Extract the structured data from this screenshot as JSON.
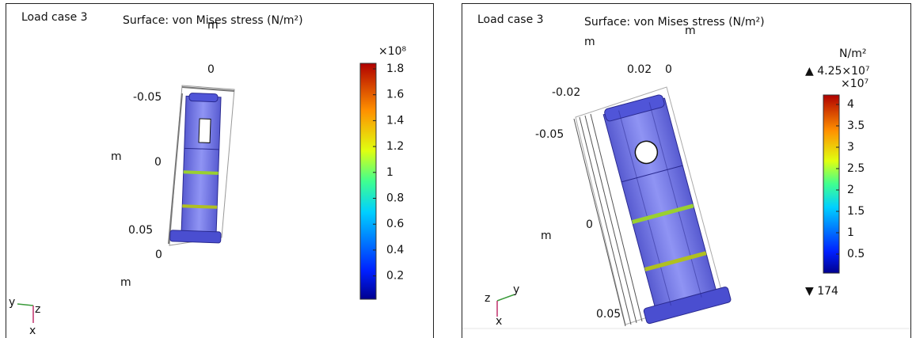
{
  "panels": [
    {
      "label": "Load case 3",
      "title": "Surface: von Mises stress (N/m²)",
      "axis_labels": [
        "m",
        "0",
        "-0.05",
        "m",
        "0",
        "0.05",
        "0",
        "m"
      ],
      "colorbar": {
        "exponent": "×10⁸",
        "ticks": [
          "1.8",
          "1.6",
          "1.4",
          "1.2",
          "1",
          "0.8",
          "0.6",
          "0.4",
          "0.2"
        ]
      },
      "triad": [
        "y",
        "z",
        "x"
      ]
    },
    {
      "label": "Load case 3",
      "title": "Surface: von Mises stress (N/m²)",
      "axis_labels": [
        "m",
        "m",
        "0.02",
        "0",
        "-0.02",
        "-0.05",
        "0",
        "m",
        "0.05"
      ],
      "colorbar": {
        "unit": "N/m²",
        "max": "▲ 4.25×10⁷",
        "exponent": "×10⁷",
        "ticks": [
          "4",
          "3.5",
          "3",
          "2.5",
          "2",
          "1.5",
          "1",
          "0.5"
        ],
        "min": "▼ 174"
      },
      "triad": [
        "z",
        "y",
        "x"
      ]
    }
  ]
}
